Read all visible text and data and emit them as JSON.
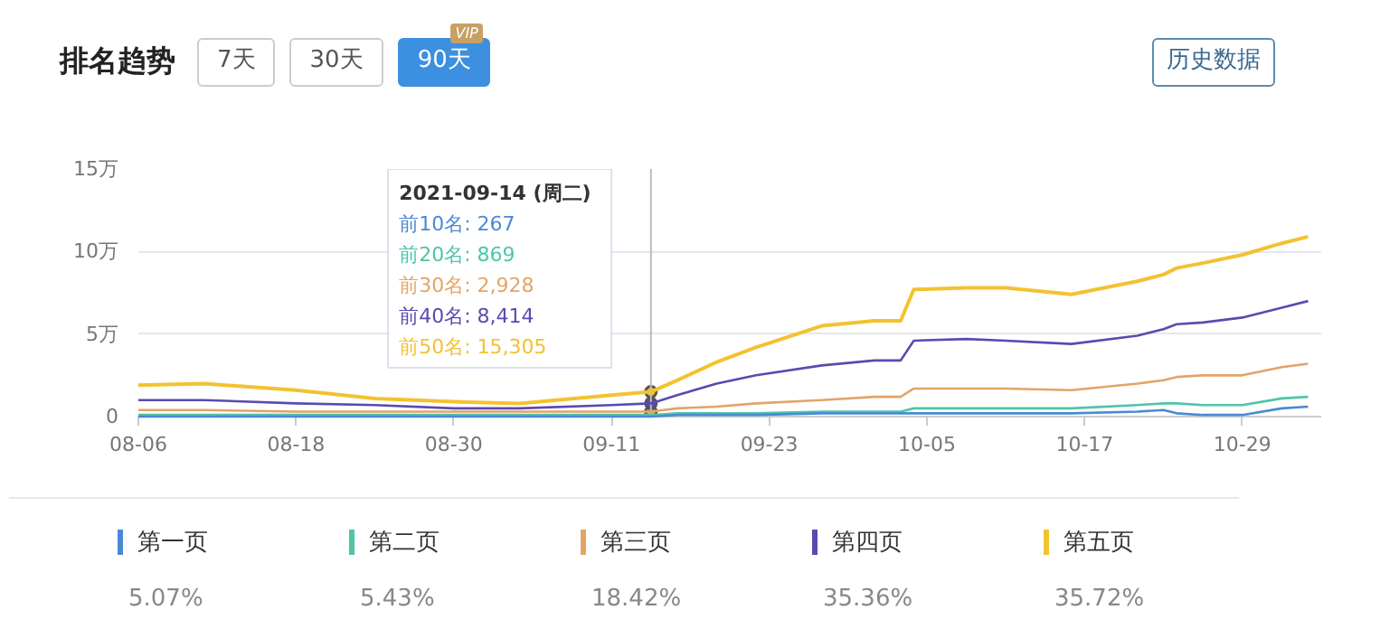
{
  "chart_data": {
    "type": "line",
    "title": "排名趋势",
    "x": [
      "2021-08-06",
      "2021-08-11",
      "2021-08-18",
      "2021-08-24",
      "2021-08-30",
      "2021-09-04",
      "2021-09-11",
      "2021-09-14",
      "2021-09-16",
      "2021-09-19",
      "2021-09-22",
      "2021-09-27",
      "2021-10-01",
      "2021-10-03",
      "2021-10-04",
      "2021-10-08",
      "2021-10-11",
      "2021-10-16",
      "2021-10-21",
      "2021-10-23",
      "2021-10-24",
      "2021-10-26",
      "2021-10-29",
      "2021-11-01",
      "2021-11-03"
    ],
    "series": [
      {
        "name": "第一页",
        "color": "#4a8ad4",
        "values": [
          0.0,
          0.0,
          0.0,
          0.0,
          0.0,
          0.0,
          0.0,
          0.0,
          0.1,
          0.1,
          0.1,
          0.2,
          0.2,
          0.2,
          0.2,
          0.2,
          0.2,
          0.2,
          0.3,
          0.4,
          0.2,
          0.1,
          0.1,
          0.5,
          0.6
        ]
      },
      {
        "name": "第二页",
        "color": "#4fc4a8",
        "values": [
          0.1,
          0.1,
          0.1,
          0.1,
          0.1,
          0.1,
          0.1,
          0.1,
          0.2,
          0.2,
          0.2,
          0.3,
          0.3,
          0.3,
          0.5,
          0.5,
          0.5,
          0.5,
          0.7,
          0.8,
          0.8,
          0.7,
          0.7,
          1.1,
          1.2
        ]
      },
      {
        "name": "第三页",
        "color": "#e3a468",
        "values": [
          0.4,
          0.4,
          0.3,
          0.3,
          0.3,
          0.3,
          0.3,
          0.3,
          0.5,
          0.6,
          0.8,
          1.0,
          1.2,
          1.2,
          1.7,
          1.7,
          1.7,
          1.6,
          2.0,
          2.2,
          2.4,
          2.5,
          2.5,
          3.0,
          3.2
        ]
      },
      {
        "name": "第四页",
        "color": "#5a4ab0",
        "values": [
          1.0,
          1.0,
          0.8,
          0.7,
          0.5,
          0.5,
          0.7,
          0.8,
          1.3,
          2.0,
          2.5,
          3.1,
          3.4,
          3.4,
          4.6,
          4.7,
          4.6,
          4.4,
          4.9,
          5.3,
          5.6,
          5.7,
          6.0,
          6.6,
          7.0
        ]
      },
      {
        "name": "第五页",
        "color": "#f2c230",
        "values": [
          1.9,
          2.0,
          1.6,
          1.1,
          0.9,
          0.8,
          1.3,
          1.5,
          2.2,
          3.3,
          4.2,
          5.5,
          5.8,
          5.8,
          7.7,
          7.8,
          7.8,
          7.4,
          8.2,
          8.6,
          9.0,
          9.3,
          9.8,
          10.5,
          10.9
        ]
      }
    ],
    "xlim": [
      "2021-08-06",
      "2021-11-04"
    ],
    "xticks": [
      {
        "value": "2021-08-06",
        "label": "08-06"
      },
      {
        "value": "2021-08-18",
        "label": "08-18"
      },
      {
        "value": "2021-08-30",
        "label": "08-30"
      },
      {
        "value": "2021-09-11",
        "label": "09-11"
      },
      {
        "value": "2021-09-23",
        "label": "09-23"
      },
      {
        "value": "2021-10-05",
        "label": "10-05"
      },
      {
        "value": "2021-10-17",
        "label": "10-17"
      },
      {
        "value": "2021-10-29",
        "label": "10-29"
      }
    ],
    "ylim": [
      0,
      15
    ],
    "yticks": [
      0,
      {
        "value": 5,
        "label": "5万"
      },
      {
        "value": 10,
        "label": "10万"
      },
      {
        "value": 15,
        "label": "15万"
      }
    ],
    "grid": "y",
    "legend": "bottom",
    "ref_lines": [
      {
        "axis": "x",
        "value": "2021-09-14",
        "color": "#bbbbbb"
      }
    ],
    "annotations": [
      "7天",
      "30天",
      "90天",
      "VIP",
      "历史数据",
      "5.07%",
      "5.43%",
      "18.42%",
      "35.36%",
      "35.72%",
      "2021-09-14 (周二)",
      "前10名: 267",
      "前20名: 869",
      "前30名: 2,928",
      "前40名: 8,414",
      "前50名: 15,305"
    ]
  }
}
